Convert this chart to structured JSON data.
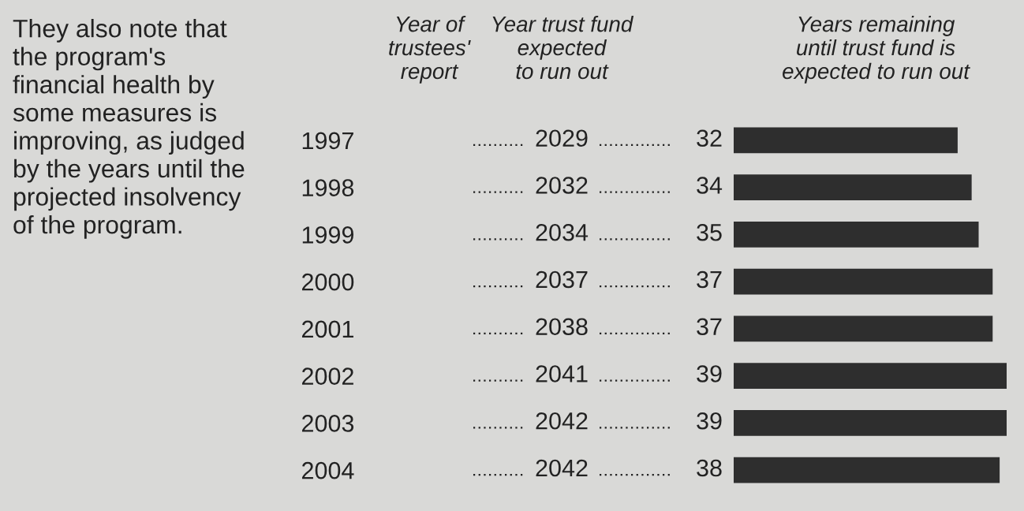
{
  "chart_data": {
    "type": "bar",
    "orientation": "horizontal",
    "categories": [
      "1997",
      "1998",
      "1999",
      "2000",
      "2001",
      "2002",
      "2003",
      "2004"
    ],
    "values": [
      32,
      34,
      35,
      37,
      37,
      39,
      39,
      38
    ],
    "color": "#2e2e2e",
    "data_labels": true,
    "ylabel": "Year of\ntrustees'\nreport",
    "xlabel": "Years remaining\nuntil trust fund is\nexpected to run out",
    "annotations": [
      "They also note that\nthe program's\nfinancial health by\nsome measures is\nimproving, as judged\nby the years until the\nprojected insolvency\nof the program.",
      "Year trust fund\nexpected\nto run out",
      "2029",
      "2032",
      "2034",
      "2037",
      "2038",
      "2041",
      "2042",
      "2042"
    ],
    "grid": false,
    "legend": false
  }
}
